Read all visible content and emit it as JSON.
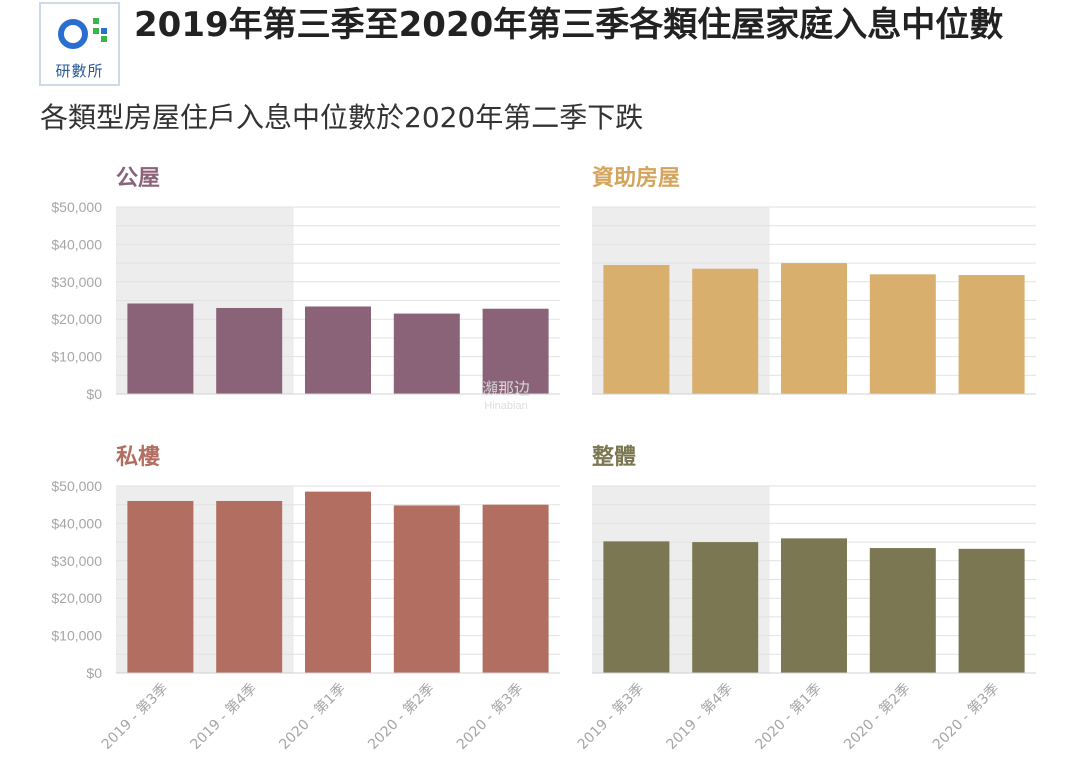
{
  "logo": {
    "text": "研數所"
  },
  "header": {
    "title": "2019年第三季至2020年第三季各類住屋家庭入息中位數",
    "subtitle": "各類型房屋住戶入息中位數於2020年第二季下跌"
  },
  "watermark": {
    "text": "瀕那边",
    "sub": "Hinabian"
  },
  "chart_data": [
    {
      "type": "bar",
      "title": "公屋",
      "color": "#8a6379",
      "title_color": "#8a6379",
      "categories": [
        "2019 - 第3季",
        "2019 - 第4季",
        "2020 - 第1季",
        "2020 - 第2季",
        "2020 - 第3季"
      ],
      "values": [
        24200,
        23000,
        23400,
        21500,
        22800
      ],
      "yticks": [
        "$0",
        "$10,000",
        "$20,000",
        "$30,000",
        "$40,000",
        "$50,000"
      ],
      "ylim": [
        0,
        50000
      ],
      "show_category_labels": false
    },
    {
      "type": "bar",
      "title": "資助房屋",
      "color": "#d8af6c",
      "title_color": "#d4a45c",
      "categories": [
        "2019 - 第3季",
        "2019 - 第4季",
        "2020 - 第1季",
        "2020 - 第2季",
        "2020 - 第3季"
      ],
      "values": [
        34500,
        33500,
        35000,
        32000,
        31800
      ],
      "yticks": [],
      "ylim": [
        0,
        50000
      ],
      "show_category_labels": false
    },
    {
      "type": "bar",
      "title": "私樓",
      "color": "#b36e62",
      "title_color": "#b36e62",
      "categories": [
        "2019 - 第3季",
        "2019 - 第4季",
        "2020 - 第1季",
        "2020 - 第2季",
        "2020 - 第3季"
      ],
      "values": [
        46000,
        46000,
        48500,
        44800,
        45000
      ],
      "yticks": [
        "$0",
        "$10,000",
        "$20,000",
        "$30,000",
        "$40,000",
        "$50,000"
      ],
      "ylim": [
        0,
        50000
      ],
      "show_category_labels": true
    },
    {
      "type": "bar",
      "title": "整體",
      "color": "#7b7752",
      "title_color": "#7b7752",
      "categories": [
        "2019 - 第3季",
        "2019 - 第4季",
        "2020 - 第1季",
        "2020 - 第2季",
        "2020 - 第3季"
      ],
      "values": [
        35200,
        35000,
        36000,
        33400,
        33200
      ],
      "yticks": [],
      "ylim": [
        0,
        50000
      ],
      "show_category_labels": true
    }
  ]
}
